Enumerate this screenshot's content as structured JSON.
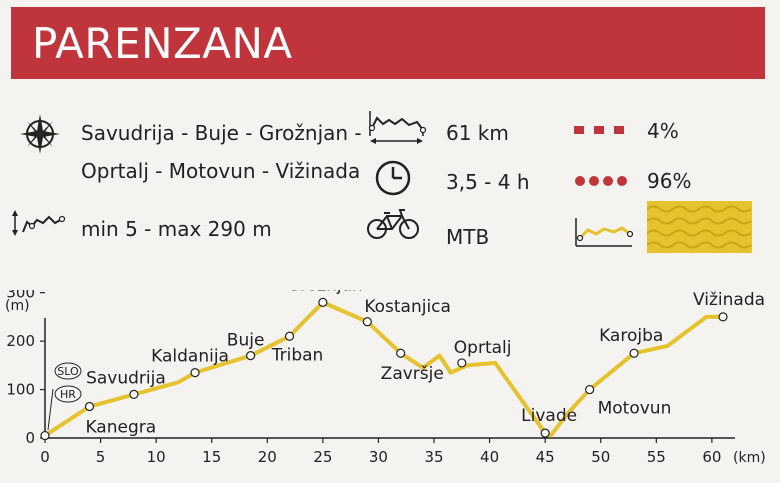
{
  "header": {
    "title": "PARENZANA"
  },
  "route": {
    "line1": "Savudrija - Buje - Grožnjan -",
    "line2": "Oprtalj - Motovun - Vižinada"
  },
  "elevation": {
    "text": "min 5 - max 290 m"
  },
  "distance": {
    "text": "61 km"
  },
  "duration": {
    "text": "3,5 - 4 h"
  },
  "bike": {
    "text": "MTB"
  },
  "surface": {
    "paved_pct": "4%",
    "gravel_pct": "96%",
    "accent_color": "#c0353c",
    "profile_color": "#e6c22e"
  },
  "icons": {
    "compass": "compass-icon",
    "elevation": "elevation-profile-icon",
    "distance": "distance-icon",
    "clock": "clock-icon",
    "bicycle": "bicycle-icon",
    "dashed_line": "dashed-line-icon",
    "dotted_line": "dotted-line-icon",
    "terrain": "terrain-profile-icon"
  },
  "chart_data": {
    "type": "line",
    "title": "",
    "xlabel": "(km)",
    "ylabel": "(m)",
    "xlim": [
      0,
      61
    ],
    "ylim": [
      0,
      320
    ],
    "x_ticks": [
      0,
      5,
      10,
      15,
      20,
      25,
      30,
      35,
      40,
      45,
      50,
      55,
      60
    ],
    "y_ticks": [
      0,
      100,
      200,
      300
    ],
    "grid": false,
    "line_color": "#e6c22e",
    "series": [
      {
        "x": [
          0,
          4,
          8,
          12,
          13.5,
          18.5,
          22,
          25,
          29,
          32,
          34,
          35.5,
          36.5,
          38,
          40.5,
          45,
          45.5,
          47,
          49,
          53,
          56,
          59.5,
          61
        ],
        "y": [
          5,
          65,
          90,
          115,
          135,
          170,
          210,
          280,
          240,
          175,
          145,
          170,
          135,
          150,
          155,
          10,
          5,
          50,
          100,
          175,
          190,
          250,
          250
        ]
      }
    ],
    "points": [
      {
        "name": "Kanegra",
        "x": 4,
        "y": 65
      },
      {
        "name": "Savudrija",
        "x": 8,
        "y": 90
      },
      {
        "name": "Kaldanija",
        "x": 13.5,
        "y": 135
      },
      {
        "name": "Buje",
        "x": 18.5,
        "y": 170
      },
      {
        "name": "Triban",
        "x": 22,
        "y": 210
      },
      {
        "name": "Grožnjan",
        "x": 25,
        "y": 280
      },
      {
        "name": "Kostanjica",
        "x": 29,
        "y": 240
      },
      {
        "name": "Završje",
        "x": 32,
        "y": 175
      },
      {
        "name": "Oprtalj",
        "x": 37.5,
        "y": 155
      },
      {
        "name": "Livade",
        "x": 45,
        "y": 10
      },
      {
        "name": "Motovun",
        "x": 49,
        "y": 100
      },
      {
        "name": "Karojba",
        "x": 53,
        "y": 175
      },
      {
        "name": "Vižinada",
        "x": 61,
        "y": 250
      }
    ],
    "start_point": {
      "x": 0,
      "y": 5
    },
    "border_badges": [
      "SLO",
      "HR"
    ]
  }
}
